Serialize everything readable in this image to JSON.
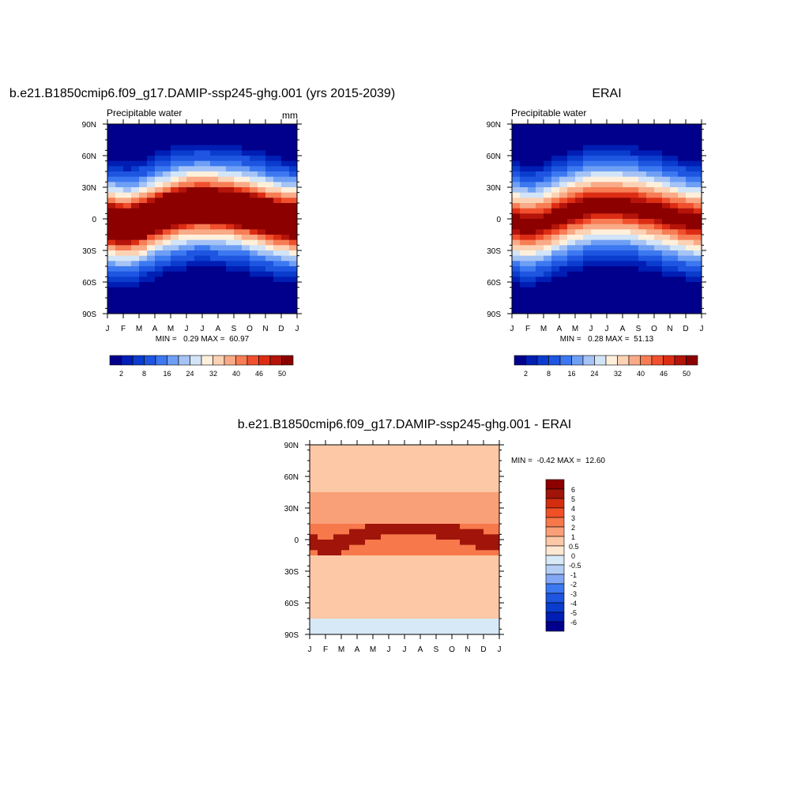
{
  "chart_data": [
    {
      "type": "heatmap",
      "title": "b.e21.B1850cmip6.f09_g17.DAMIP-ssp245-ghg.001 (yrs 2015-2039)",
      "left_label": "Precipitable water",
      "units": "mm",
      "x_ticks": [
        "J",
        "F",
        "M",
        "A",
        "M",
        "J",
        "J",
        "A",
        "S",
        "O",
        "N",
        "D",
        "J"
      ],
      "y_ticks": [
        "90N",
        "60N",
        "30N",
        "0",
        "30S",
        "60S",
        "90S"
      ],
      "stats": "MIN =   0.29 MAX =  60.97",
      "min": 0.29,
      "max": 60.97,
      "colorbar_labels": [
        "2",
        "8",
        "16",
        "24",
        "32",
        "40",
        "46",
        "50"
      ],
      "colorbar_levels": [
        2,
        4,
        6,
        8,
        12,
        16,
        20,
        24,
        28,
        32,
        36,
        40,
        44,
        46,
        48,
        50
      ],
      "itcz_center_lat": [
        -3,
        -7,
        -4,
        3,
        8,
        12,
        13,
        12,
        10,
        7,
        3,
        -1,
        -3
      ],
      "peak_value": 61
    },
    {
      "type": "heatmap",
      "title": "ERAI",
      "left_label": "Precipitable water",
      "units": "",
      "x_ticks": [
        "J",
        "F",
        "M",
        "A",
        "M",
        "J",
        "J",
        "A",
        "S",
        "O",
        "N",
        "D",
        "J"
      ],
      "y_ticks": [
        "90N",
        "60N",
        "30N",
        "0",
        "30S",
        "60S",
        "90S"
      ],
      "stats": "MIN =   0.28 MAX =  51.13",
      "min": 0.28,
      "max": 51.13,
      "colorbar_labels": [
        "2",
        "8",
        "16",
        "24",
        "32",
        "40",
        "46",
        "50"
      ],
      "colorbar_levels": [
        2,
        4,
        6,
        8,
        12,
        16,
        20,
        24,
        28,
        32,
        36,
        40,
        44,
        46,
        48,
        50
      ],
      "itcz_center_lat": [
        -3,
        -7,
        -4,
        3,
        8,
        12,
        13,
        12,
        10,
        7,
        3,
        -1,
        -3
      ],
      "peak_value": 51
    },
    {
      "type": "heatmap",
      "title": "b.e21.B1850cmip6.f09_g17.DAMIP-ssp245-ghg.001 - ERAI",
      "x_ticks": [
        "J",
        "F",
        "M",
        "A",
        "M",
        "J",
        "J",
        "A",
        "S",
        "O",
        "N",
        "D",
        "J"
      ],
      "y_ticks": [
        "90N",
        "60N",
        "30N",
        "0",
        "30S",
        "60S",
        "90S"
      ],
      "stats": "MIN =  -0.42 MAX =  12.60",
      "min": -0.42,
      "max": 12.6,
      "colorbar_labels": [
        "6",
        "5",
        "4",
        "3",
        "2",
        "1",
        "0.5",
        "0",
        "-0.5",
        "-1",
        "-2",
        "-3",
        "-4",
        "-5",
        "-6"
      ],
      "colorbar_levels": [
        -6,
        -5,
        -4,
        -3,
        -2,
        -1,
        -0.5,
        0,
        0.5,
        1,
        2,
        3,
        4,
        5,
        6
      ]
    }
  ],
  "colors": {
    "seq": [
      "#00008c",
      "#001eb4",
      "#0a3ccd",
      "#1e55e1",
      "#3c78f0",
      "#6e9ff5",
      "#a5c3f5",
      "#d2e4f7",
      "#fff0dc",
      "#fcd2b4",
      "#f9aa87",
      "#f77d55",
      "#f0502d",
      "#dc2d14",
      "#b4140a",
      "#8c0000"
    ],
    "div": [
      "#00008c",
      "#001eb4",
      "#0a3ccd",
      "#1e55e1",
      "#3c78f0",
      "#82a8f5",
      "#b4cdf5",
      "#d7e8f7",
      "#ffe8d2",
      "#fcc8a5",
      "#f9a078",
      "#f7784b",
      "#f05028",
      "#d22d0f",
      "#a0140a",
      "#8c0000"
    ]
  }
}
